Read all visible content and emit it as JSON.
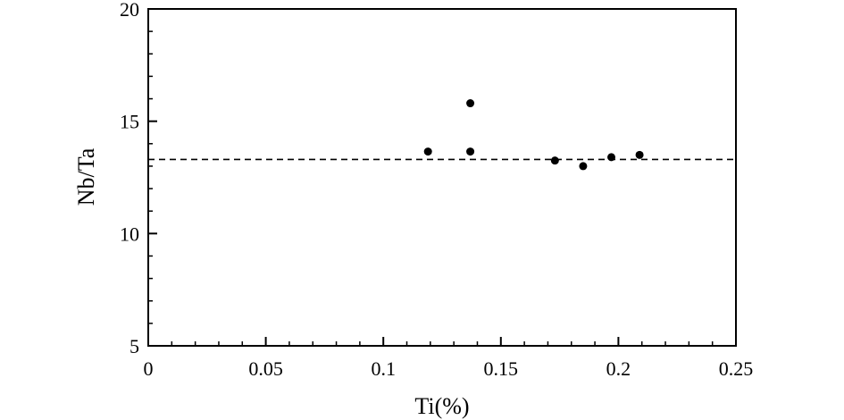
{
  "chart_data": {
    "type": "scatter",
    "title": "",
    "xlabel": "Ti(%)",
    "ylabel": "Nb/Ta",
    "xlim": [
      0,
      0.25
    ],
    "ylim": [
      5,
      20
    ],
    "x_ticks": [
      0,
      0.05,
      0.1,
      0.15,
      0.2,
      0.25
    ],
    "x_tick_labels": [
      "0",
      "0.05",
      "0.1",
      "0.15",
      "0.2",
      "0.25"
    ],
    "y_ticks": [
      5,
      10,
      15,
      20
    ],
    "y_tick_labels": [
      "5",
      "10",
      "15",
      "20"
    ],
    "grid": false,
    "legend": "none",
    "reference_line": {
      "y": 13.3,
      "style": "dashed"
    },
    "series": [
      {
        "points": [
          {
            "x": 0.119,
            "y": 13.65
          },
          {
            "x": 0.137,
            "y": 15.8
          },
          {
            "x": 0.137,
            "y": 13.65
          },
          {
            "x": 0.173,
            "y": 13.25
          },
          {
            "x": 0.185,
            "y": 13.0
          },
          {
            "x": 0.197,
            "y": 13.4
          },
          {
            "x": 0.209,
            "y": 13.5
          }
        ]
      }
    ],
    "colors": {
      "marker": "#000000",
      "axis": "#000000",
      "reference_line": "#000000"
    }
  }
}
